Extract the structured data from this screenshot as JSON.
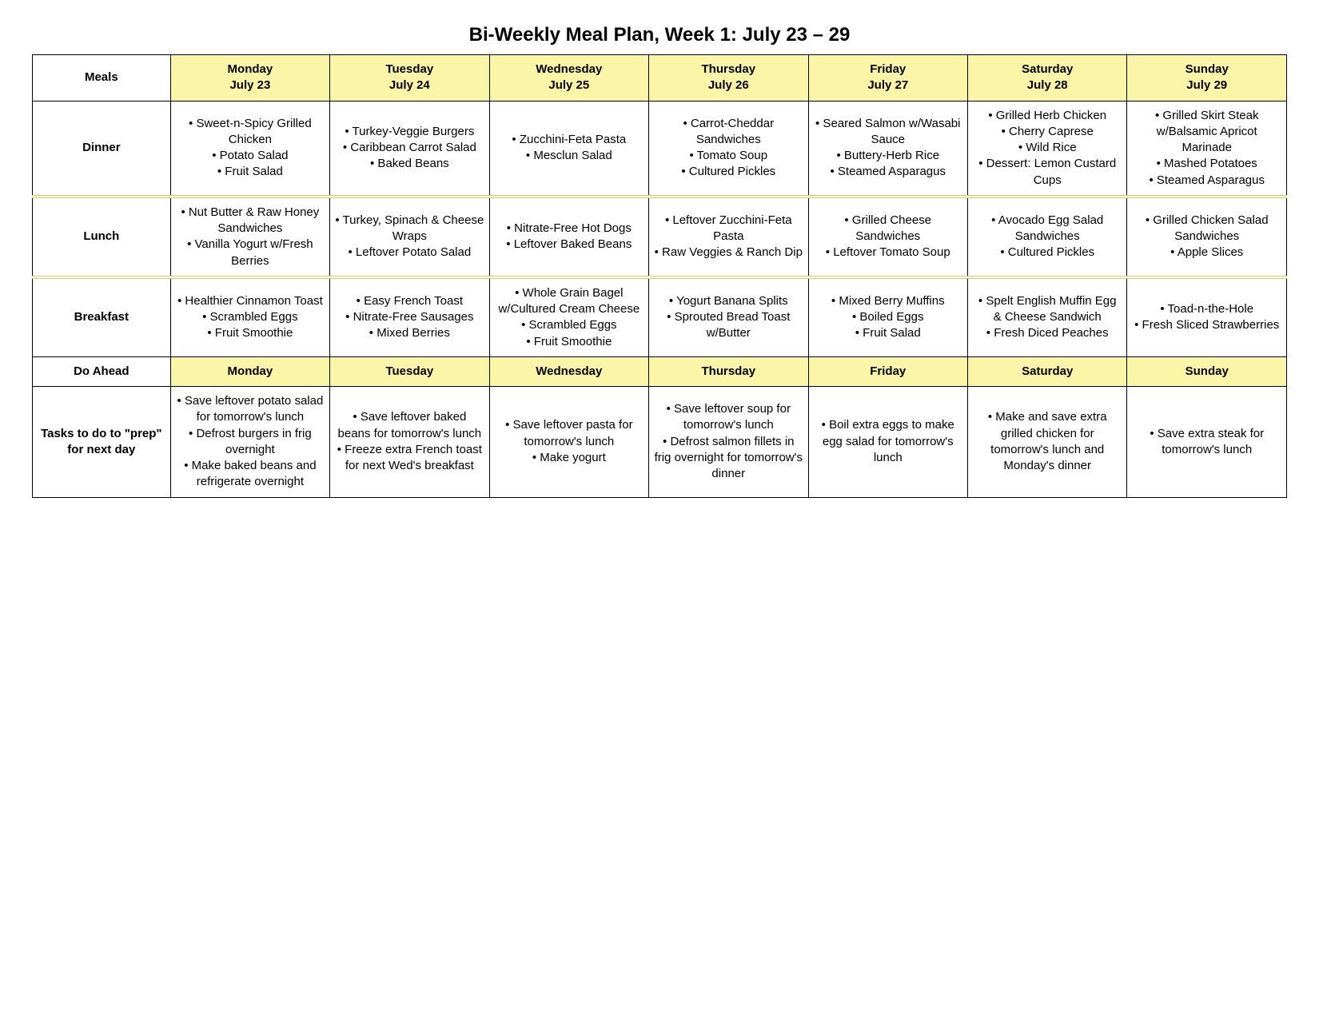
{
  "title": "Bi-Weekly Meal Plan, Week 1: July 23 – 29",
  "colors": {
    "header_bg": "#fbf6a7",
    "border": "#000000",
    "text": "#000000",
    "background": "#ffffff"
  },
  "labels": {
    "meals": "Meals",
    "dinner": "Dinner",
    "lunch": "Lunch",
    "breakfast": "Breakfast",
    "do_ahead": "Do Ahead",
    "tasks": "Tasks to do to \"prep\" for next day"
  },
  "days": [
    {
      "name": "Monday",
      "date": "July 23"
    },
    {
      "name": "Tuesday",
      "date": "July 24"
    },
    {
      "name": "Wednesday",
      "date": "July 25"
    },
    {
      "name": "Thursday",
      "date": "July 26"
    },
    {
      "name": "Friday",
      "date": "July 27"
    },
    {
      "name": "Saturday",
      "date": "July 28"
    },
    {
      "name": "Sunday",
      "date": "July 29"
    }
  ],
  "meals": {
    "dinner": [
      [
        "Sweet-n-Spicy Grilled Chicken",
        "Potato Salad",
        "Fruit Salad"
      ],
      [
        "Turkey-Veggie Burgers",
        "Caribbean Carrot Salad",
        "Baked Beans"
      ],
      [
        "Zucchini-Feta Pasta",
        "Mesclun Salad"
      ],
      [
        "Carrot-Cheddar Sandwiches",
        "Tomato Soup",
        "Cultured Pickles"
      ],
      [
        "Seared Salmon w/Wasabi Sauce",
        "Buttery-Herb Rice",
        "Steamed Asparagus"
      ],
      [
        "Grilled Herb Chicken",
        "Cherry Caprese",
        "Wild Rice",
        "Dessert: Lemon Custard Cups"
      ],
      [
        "Grilled Skirt Steak w/Balsamic Apricot Marinade",
        "Mashed Potatoes",
        "Steamed Asparagus"
      ]
    ],
    "lunch": [
      [
        "Nut Butter & Raw Honey Sandwiches",
        "Vanilla Yogurt w/Fresh Berries"
      ],
      [
        "Turkey, Spinach & Cheese Wraps",
        "Leftover Potato Salad"
      ],
      [
        "Nitrate-Free Hot Dogs",
        "Leftover Baked Beans"
      ],
      [
        "Leftover Zucchini-Feta Pasta",
        "Raw Veggies & Ranch Dip"
      ],
      [
        "Grilled Cheese Sandwiches",
        "Leftover Tomato Soup"
      ],
      [
        "Avocado Egg Salad Sandwiches",
        "Cultured Pickles"
      ],
      [
        "Grilled Chicken Salad Sandwiches",
        "Apple Slices"
      ]
    ],
    "breakfast": [
      [
        "Healthier Cinnamon Toast",
        "Scrambled Eggs",
        "Fruit Smoothie"
      ],
      [
        "Easy French Toast",
        "Nitrate-Free Sausages",
        "Mixed Berries"
      ],
      [
        "Whole Grain Bagel w/Cultured Cream Cheese",
        "Scrambled Eggs",
        "Fruit Smoothie"
      ],
      [
        "Yogurt Banana Splits",
        "Sprouted Bread Toast w/Butter"
      ],
      [
        "Mixed Berry Muffins",
        "Boiled Eggs",
        "Fruit Salad"
      ],
      [
        "Spelt English Muffin Egg & Cheese Sandwich",
        "Fresh Diced Peaches"
      ],
      [
        "Toad-n-the-Hole",
        "Fresh Sliced Strawberries"
      ]
    ],
    "tasks": [
      [
        "Save leftover potato salad for tomorrow's lunch",
        "Defrost burgers in frig overnight",
        "Make baked beans and refrigerate overnight"
      ],
      [
        "Save leftover baked beans for tomorrow's lunch",
        "Freeze extra French toast for next Wed's breakfast"
      ],
      [
        "Save leftover pasta for tomorrow's lunch",
        "Make yogurt"
      ],
      [
        "Save leftover soup for tomorrow's lunch",
        "Defrost salmon fillets in frig overnight for tomorrow's dinner"
      ],
      [
        "Boil extra eggs to make egg salad for tomorrow's lunch"
      ],
      [
        "Make and save extra grilled chicken for tomorrow's lunch and Monday's dinner"
      ],
      [
        "Save extra steak for tomorrow's lunch"
      ]
    ]
  },
  "do_ahead_days": [
    "Monday",
    "Tuesday",
    "Wednesday",
    "Thursday",
    "Friday",
    "Saturday",
    "Sunday"
  ]
}
